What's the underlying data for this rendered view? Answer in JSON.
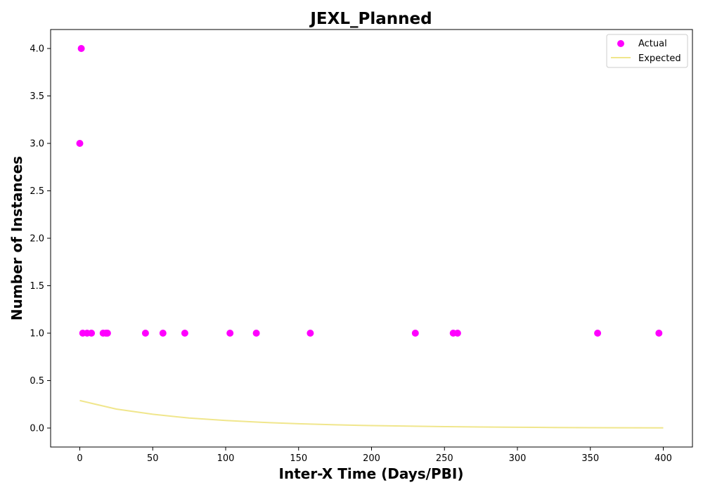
{
  "chart_data": {
    "type": "scatter",
    "title": "JEXL_Planned",
    "xlabel": "Inter-X Time (Days/PBI)",
    "ylabel": "Number of Instances",
    "xlim": [
      -20,
      420
    ],
    "ylim": [
      -0.2,
      4.2
    ],
    "xticks": [
      0,
      50,
      100,
      150,
      200,
      250,
      300,
      350,
      400
    ],
    "yticks": [
      0.0,
      0.5,
      1.0,
      1.5,
      2.0,
      2.5,
      3.0,
      3.5,
      4.0
    ],
    "xtick_labels": [
      "0",
      "50",
      "100",
      "150",
      "200",
      "250",
      "300",
      "350",
      "400"
    ],
    "ytick_labels": [
      "0.0",
      "0.5",
      "1.0",
      "1.5",
      "2.0",
      "2.5",
      "3.0",
      "3.5",
      "4.0"
    ],
    "grid": false,
    "legend_position": "top-right",
    "series": [
      {
        "name": "Actual",
        "kind": "scatter",
        "color": "#ff00ff",
        "x": [
          0,
          1,
          2,
          5,
          8,
          16,
          18,
          19,
          45,
          57,
          72,
          103,
          121,
          158,
          230,
          256,
          259,
          355,
          397
        ],
        "y": [
          3,
          4,
          1,
          1,
          1,
          1,
          1,
          1,
          1,
          1,
          1,
          1,
          1,
          1,
          1,
          1,
          1,
          1,
          1
        ]
      },
      {
        "name": "Expected",
        "kind": "line",
        "color": "#f0e68c",
        "x": [
          0,
          25,
          50,
          75,
          100,
          125,
          150,
          175,
          200,
          225,
          250,
          275,
          300,
          325,
          350,
          375,
          400
        ],
        "y": [
          0.29,
          0.2,
          0.145,
          0.105,
          0.08,
          0.06,
          0.045,
          0.034,
          0.026,
          0.02,
          0.015,
          0.011,
          0.008,
          0.006,
          0.004,
          0.003,
          0.002
        ]
      }
    ]
  }
}
